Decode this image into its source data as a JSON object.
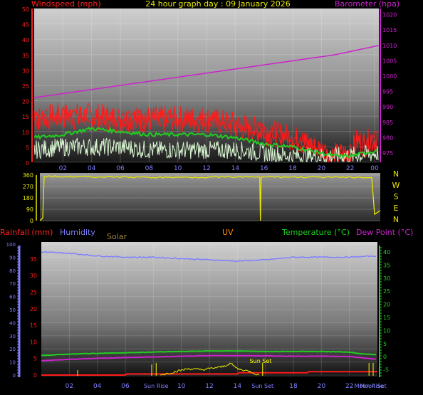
{
  "title": "24 hour graph day : 09 January 2026",
  "colors": {
    "wind_gust": "#ff1a1a",
    "wind_avg": "#22cc22",
    "wind_speed": "#d8f5d0",
    "barometer": "#cc22cc",
    "direction": "#e8e800",
    "humidity": "#8080ff",
    "temperature": "#22cc22",
    "dew_point": "#cc22cc",
    "rainfall": "#ff1a1a",
    "solar": "#e8e800",
    "uv": "#ff8800",
    "left_axis_top": "#ff2020",
    "right_axis_top": "#cc22cc",
    "left_axis_bottom": "#8080ff",
    "right_axis_bottom": "#22cc22",
    "x_ticks": "#8080ff"
  },
  "chart_data": [
    {
      "type": "line",
      "panel": "wind-barometer",
      "left_axis_label": "Windspeed (mph)",
      "right_axis_label": "Barometer (hpa)",
      "left_ticks": [
        0,
        5,
        10,
        15,
        20,
        25,
        30,
        35,
        40,
        45,
        50
      ],
      "right_ticks": [
        975,
        980,
        985,
        990,
        995,
        1000,
        1005,
        1010,
        1015,
        1020
      ],
      "ylim_left": [
        0,
        50
      ],
      "ylim_right": [
        972,
        1022
      ],
      "x_tick_labels": [
        "02",
        "04",
        "06",
        "08",
        "10",
        "12",
        "14",
        "16",
        "18",
        "20",
        "22",
        "00"
      ],
      "x_hours": [
        0,
        24
      ],
      "series": [
        {
          "key": "gust",
          "hours": [
            0,
            2,
            4,
            6,
            8,
            10,
            12,
            14,
            16,
            18,
            19,
            20,
            20.5,
            21,
            22,
            22.5,
            23,
            24
          ],
          "values": [
            14,
            15,
            15,
            14,
            14,
            14,
            14,
            12,
            10,
            8,
            6,
            4,
            2,
            2,
            3,
            7,
            6,
            8
          ]
        },
        {
          "key": "avg",
          "hours": [
            0,
            2,
            4,
            6,
            8,
            10,
            12,
            14,
            16,
            18,
            19,
            20,
            21,
            22,
            23,
            24
          ],
          "values": [
            8,
            9,
            11,
            10,
            9,
            9,
            9,
            8,
            6,
            5,
            4,
            3,
            2,
            2,
            3,
            4
          ]
        },
        {
          "key": "speed",
          "hours": [
            0,
            2,
            4,
            6,
            8,
            10,
            12,
            14,
            16,
            18,
            20,
            22,
            24
          ],
          "values": [
            4,
            5,
            5,
            5,
            4,
            4,
            4,
            4,
            3,
            2,
            2,
            2,
            3
          ]
        },
        {
          "key": "barometer",
          "hours": [
            0,
            3,
            6,
            9,
            12,
            15,
            18,
            21,
            24
          ],
          "values": [
            993,
            995,
            997,
            999,
            1001,
            1003,
            1005,
            1007,
            1010
          ]
        }
      ]
    },
    {
      "type": "line",
      "panel": "wind-direction",
      "left_ticks": [
        0,
        90,
        180,
        270,
        360
      ],
      "compass_labels": [
        "N",
        "W",
        "S",
        "E",
        "N"
      ],
      "ylim": [
        0,
        360
      ],
      "series": [
        {
          "key": "direction",
          "hours": [
            0,
            0.2,
            0.3,
            7.5,
            15.5,
            16,
            23.4,
            23.6,
            24
          ],
          "values": [
            0,
            20,
            350,
            342,
            345,
            346,
            340,
            50,
            80
          ]
        }
      ]
    },
    {
      "type": "line",
      "panel": "rain-humidity-temperature",
      "rainfall_label": "Rainfall (mm)",
      "humidity_label": "Humidity",
      "solar_label": "Solar",
      "uv_label": "UV",
      "temperature_label": "Temperature (°C)",
      "dew_point_label": "Dew Point (°C)",
      "humidity_ticks": [
        0,
        10,
        20,
        30,
        40,
        50,
        60,
        70,
        80,
        90,
        100
      ],
      "rainfall_ticks": [
        0,
        5,
        10,
        15,
        20,
        25,
        30,
        35
      ],
      "temperature_ticks": [
        -5,
        0,
        5,
        10,
        15,
        20,
        25,
        30,
        35,
        40
      ],
      "humidity_ylim": [
        0,
        100
      ],
      "temperature_ylim": [
        -7,
        43
      ],
      "x_tick_labels": [
        "02",
        "04",
        "06",
        "08",
        "10",
        "12",
        "14",
        "16",
        "18",
        "20",
        "22"
      ],
      "event_labels": [
        "Sun Rise",
        "Sun Set",
        "Moon Rise",
        "Moon Set",
        "Sun Set"
      ],
      "series": [
        {
          "key": "humidity",
          "hours": [
            0,
            2,
            4,
            6,
            8,
            10,
            12,
            14,
            16,
            18,
            20,
            22,
            24
          ],
          "values": [
            94,
            93,
            91,
            90,
            90,
            89,
            88,
            87,
            88,
            90,
            90,
            90,
            91
          ]
        },
        {
          "key": "temperature",
          "hours": [
            0,
            2,
            4,
            6,
            8,
            10,
            12,
            14,
            16,
            18,
            20,
            22,
            23,
            24
          ],
          "values": [
            0.5,
            1,
            1.3,
            1.5,
            1.8,
            2,
            2.2,
            2.2,
            2,
            2,
            2,
            1.8,
            1,
            0.8
          ]
        },
        {
          "key": "dew_point",
          "hours": [
            0,
            2,
            4,
            6,
            8,
            10,
            12,
            14,
            16,
            18,
            20,
            22,
            23,
            24
          ],
          "values": [
            -1.5,
            -1,
            -0.6,
            -0.3,
            -0.1,
            0.2,
            0.4,
            0.4,
            0.3,
            0.2,
            0.2,
            0.1,
            -0.5,
            -1
          ]
        },
        {
          "key": "rainfall",
          "hours": [
            0,
            6,
            6.1,
            14,
            14.1,
            19,
            19.1,
            24
          ],
          "values": [
            0,
            0,
            0.4,
            0.4,
            0.8,
            0.8,
            1.2,
            1.2
          ]
        },
        {
          "key": "solar",
          "hours": [
            0,
            8.5,
            9.5,
            10.5,
            11.5,
            12.5,
            13,
            13.5,
            14,
            15,
            15.5,
            24
          ],
          "values": [
            0,
            0,
            3,
            6,
            5,
            7,
            8,
            11,
            6,
            3,
            0,
            0
          ]
        }
      ]
    }
  ]
}
